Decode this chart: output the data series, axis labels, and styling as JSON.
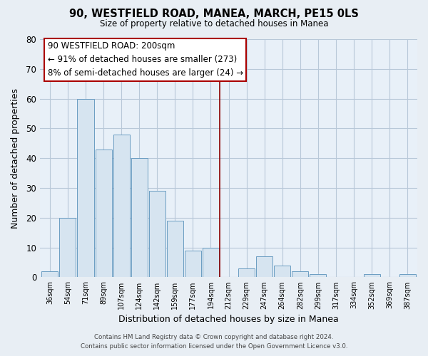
{
  "title": "90, WESTFIELD ROAD, MANEA, MARCH, PE15 0LS",
  "subtitle": "Size of property relative to detached houses in Manea",
  "xlabel": "Distribution of detached houses by size in Manea",
  "ylabel": "Number of detached properties",
  "bar_color": "#d6e4f0",
  "bar_edge_color": "#6b9dc2",
  "bin_labels": [
    "36sqm",
    "54sqm",
    "71sqm",
    "89sqm",
    "107sqm",
    "124sqm",
    "142sqm",
    "159sqm",
    "177sqm",
    "194sqm",
    "212sqm",
    "229sqm",
    "247sqm",
    "264sqm",
    "282sqm",
    "299sqm",
    "317sqm",
    "334sqm",
    "352sqm",
    "369sqm",
    "387sqm"
  ],
  "bar_heights": [
    2,
    20,
    60,
    43,
    48,
    40,
    29,
    19,
    9,
    10,
    0,
    3,
    7,
    4,
    2,
    1,
    0,
    0,
    1,
    0,
    1
  ],
  "ylim": [
    0,
    80
  ],
  "yticks": [
    0,
    10,
    20,
    30,
    40,
    50,
    60,
    70,
    80
  ],
  "vline_x": 9.5,
  "vline_color": "#8b0000",
  "annotation_box_text": "90 WESTFIELD ROAD: 200sqm\n← 91% of detached houses are smaller (273)\n8% of semi-detached houses are larger (24) →",
  "footer_line1": "Contains HM Land Registry data © Crown copyright and database right 2024.",
  "footer_line2": "Contains public sector information licensed under the Open Government Licence v3.0.",
  "background_color": "#e8eef4",
  "plot_background_color": "#e8f0f8",
  "grid_color": "#b8c8d8"
}
